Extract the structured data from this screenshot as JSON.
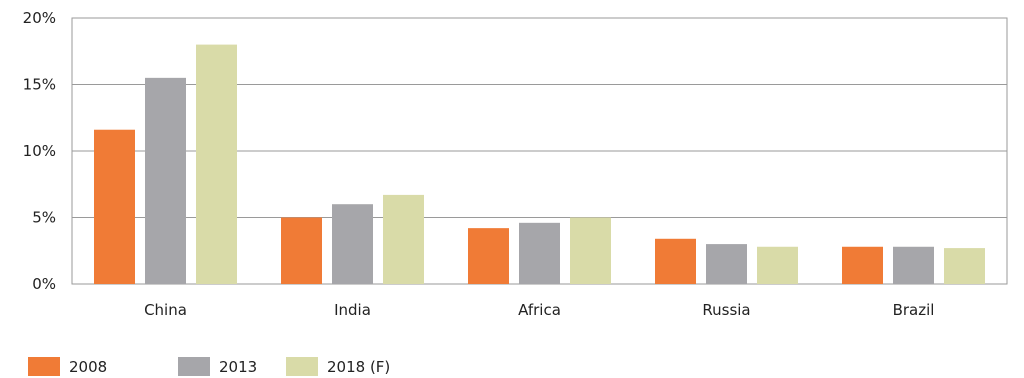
{
  "chart_data": {
    "type": "bar",
    "title": "",
    "xlabel": "",
    "ylabel": "",
    "categories": [
      "China",
      "India",
      "Africa",
      "Russia",
      "Brazil"
    ],
    "series": [
      {
        "name": "2008",
        "color": "#f07b36",
        "values": [
          11.6,
          5.0,
          4.2,
          3.4,
          2.8
        ]
      },
      {
        "name": "2013",
        "color": "#a6a6aa",
        "values": [
          15.5,
          6.0,
          4.6,
          3.0,
          2.8
        ]
      },
      {
        "name": "2018 (F)",
        "color": "#d9dba8",
        "values": [
          18.0,
          6.7,
          5.0,
          2.8,
          2.7
        ]
      }
    ],
    "ylim": [
      0,
      20
    ],
    "yticks": [
      0,
      5,
      10,
      15,
      20
    ],
    "ytick_labels": [
      "0%",
      "5%",
      "10%",
      "15%",
      "20%"
    ],
    "grid": true,
    "legend_position": "bottom-left"
  }
}
